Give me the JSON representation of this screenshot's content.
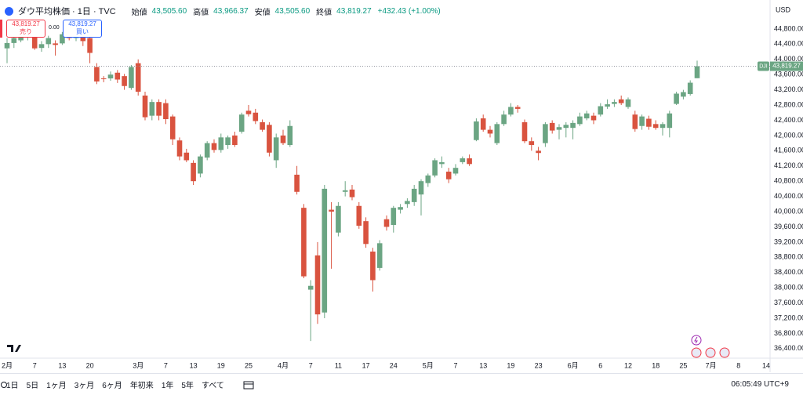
{
  "header": {
    "symbol": "ダウ平均株価 · 1日 · TVC",
    "ohlc": [
      {
        "label": "始値",
        "value": "43,505.60"
      },
      {
        "label": "高値",
        "value": "43,966.37"
      },
      {
        "label": "安値",
        "value": "43,505.60"
      },
      {
        "label": "終値",
        "value": "43,819.27"
      }
    ],
    "change": "+432.43 (+1.00%)"
  },
  "trade": {
    "sell_price": "43,819.27",
    "sell_label": "売り",
    "spread": "0.00",
    "buy_price": "43,819.27",
    "buy_label": "買い"
  },
  "price_axis": {
    "currency": "USD",
    "symbol_tag": "DJI",
    "last_price_label": "43,819.27"
  },
  "chart_data": {
    "type": "candlestick",
    "up_color": "#6ba583",
    "down_color": "#d9533f",
    "grid": false,
    "ylim": [
      36150,
      45560
    ],
    "yticks": [
      {
        "value": 44800,
        "label": "44,800.00"
      },
      {
        "value": 44400,
        "label": "44,400.00"
      },
      {
        "value": 44000,
        "label": "44,000.00"
      },
      {
        "value": 43600,
        "label": "43,600.00"
      },
      {
        "value": 43200,
        "label": "43,200.00"
      },
      {
        "value": 42800,
        "label": "42,800.00"
      },
      {
        "value": 42400,
        "label": "42,400.00"
      },
      {
        "value": 42000,
        "label": "42,000.00"
      },
      {
        "value": 41600,
        "label": "41,600.00"
      },
      {
        "value": 41200,
        "label": "41,200.00"
      },
      {
        "value": 40800,
        "label": "40,800.00"
      },
      {
        "value": 40400,
        "label": "40,400.00"
      },
      {
        "value": 40000,
        "label": "40,000.00"
      },
      {
        "value": 39600,
        "label": "39,600.00"
      },
      {
        "value": 39200,
        "label": "39,200.00"
      },
      {
        "value": 38800,
        "label": "38,800.00"
      },
      {
        "value": 38400,
        "label": "38,400.00"
      },
      {
        "value": 38000,
        "label": "38,000.00"
      },
      {
        "value": 37600,
        "label": "37,600.00"
      },
      {
        "value": 37200,
        "label": "37,200.00"
      },
      {
        "value": 36800,
        "label": "36,800.00"
      },
      {
        "value": 36400,
        "label": "36,400.00"
      }
    ],
    "categories": [
      "2月",
      null,
      null,
      null,
      "7",
      null,
      null,
      null,
      "13",
      null,
      null,
      null,
      "20",
      null,
      null,
      null,
      null,
      null,
      null,
      "3月",
      null,
      null,
      null,
      "7",
      null,
      null,
      null,
      "13",
      null,
      null,
      null,
      "19",
      null,
      null,
      null,
      "25",
      null,
      null,
      null,
      null,
      "4月",
      null,
      null,
      null,
      "7",
      null,
      null,
      null,
      "11",
      null,
      null,
      null,
      "17",
      null,
      null,
      null,
      "24",
      null,
      null,
      null,
      null,
      "5月",
      null,
      null,
      null,
      "7",
      null,
      null,
      null,
      "13",
      null,
      null,
      null,
      "19",
      null,
      null,
      null,
      "23",
      null,
      null,
      null,
      null,
      "6月",
      null,
      null,
      null,
      "6",
      null,
      null,
      null,
      "12",
      null,
      null,
      null,
      "18",
      null,
      null,
      null,
      "25",
      null,
      null,
      null,
      "7月",
      null,
      null,
      null,
      "8",
      null,
      null,
      null,
      "14"
    ],
    "open": [
      44290,
      44430,
      44500,
      44620,
      44640,
      44300,
      44400,
      44420,
      44420,
      44640,
      44560,
      44600,
      44560,
      43800,
      43500,
      43500,
      43650,
      43560,
      43250,
      43900,
      43050,
      42520,
      42880,
      42850,
      42500,
      41870,
      41550,
      41280,
      41000,
      41420,
      41800,
      41620,
      41750,
      42000,
      42100,
      42650,
      42600,
      42350,
      42280,
      41350,
      42000,
      41750,
      40970,
      40100,
      37950,
      38850,
      37350,
      40050,
      39450,
      40520,
      40580,
      40150,
      39750,
      38950,
      38520,
      39800,
      39650,
      40050,
      40200,
      40250,
      40450,
      40750,
      40950,
      41250,
      41050,
      41000,
      41300,
      41400,
      41880,
      42450,
      42150,
      41800,
      42300,
      42550,
      42750,
      42350,
      41850,
      41600,
      41800,
      42330,
      42150,
      42200,
      42200,
      42300,
      42450,
      42520,
      42550,
      42760,
      42830,
      42950,
      42750,
      42550,
      42250,
      42440,
      42300,
      42200,
      42200,
      42830,
      43020,
      43090,
      43505.6,
      null,
      null,
      null,
      null,
      null,
      null,
      null,
      null,
      null,
      null
    ],
    "high": [
      44560,
      44700,
      44760,
      44800,
      44700,
      44480,
      44620,
      44500,
      44720,
      44760,
      44700,
      44680,
      44600,
      43900,
      43560,
      43680,
      43720,
      43620,
      43850,
      44000,
      43150,
      42950,
      42950,
      42950,
      42550,
      41950,
      41650,
      41350,
      41500,
      41850,
      41900,
      42050,
      42000,
      42100,
      42600,
      42800,
      42700,
      42420,
      42350,
      42050,
      42150,
      42400,
      41200,
      40200,
      38200,
      39200,
      40700,
      40250,
      40250,
      40800,
      40700,
      40250,
      39850,
      39050,
      39250,
      39900,
      40150,
      40200,
      40350,
      40700,
      40850,
      41000,
      41400,
      41450,
      41150,
      41250,
      41450,
      41500,
      42450,
      42550,
      42250,
      42350,
      42650,
      42850,
      42800,
      42420,
      41950,
      41700,
      42350,
      42400,
      42300,
      42350,
      42400,
      42600,
      42650,
      42600,
      42850,
      42950,
      42950,
      43050,
      43000,
      42650,
      42550,
      42520,
      42400,
      42350,
      42650,
      43150,
      43200,
      43450,
      43966.37,
      null,
      null,
      null,
      null,
      null,
      null,
      null,
      null,
      null,
      null
    ],
    "low": [
      43900,
      44300,
      44450,
      44500,
      44250,
      44200,
      44300,
      44100,
      44380,
      44500,
      44480,
      44350,
      43900,
      43350,
      43400,
      43440,
      43380,
      43200,
      43200,
      43050,
      42400,
      42400,
      42400,
      42300,
      41750,
      41350,
      41300,
      40700,
      40900,
      41350,
      41550,
      41550,
      41650,
      41700,
      42050,
      42500,
      42300,
      42100,
      41450,
      41150,
      41750,
      41700,
      40450,
      38250,
      36600,
      37050,
      37200,
      38500,
      39350,
      40400,
      40300,
      39550,
      39050,
      37900,
      38450,
      39500,
      39450,
      39950,
      40100,
      40150,
      39900,
      40650,
      40900,
      41150,
      40750,
      40950,
      41250,
      41200,
      41850,
      42100,
      41950,
      41750,
      42250,
      42500,
      42600,
      41800,
      41600,
      41350,
      41700,
      42050,
      41900,
      41950,
      41900,
      42250,
      42400,
      42300,
      42500,
      42700,
      42750,
      42800,
      42700,
      42100,
      42150,
      42150,
      42150,
      42000,
      41950,
      42800,
      42950,
      43050,
      43505.6,
      null,
      null,
      null,
      null,
      null,
      null,
      null,
      null,
      null,
      null
    ],
    "close": [
      44430,
      44560,
      44620,
      44700,
      44290,
      44400,
      44560,
      44380,
      44660,
      44560,
      44600,
      44480,
      44170,
      43420,
      43480,
      43600,
      43470,
      43300,
      43800,
      43150,
      42480,
      42880,
      42520,
      42430,
      41900,
      41450,
      41350,
      40800,
      41450,
      41800,
      41620,
      41950,
      41950,
      41750,
      42550,
      42560,
      42380,
      42150,
      41550,
      41950,
      41800,
      42250,
      40520,
      38300,
      38050,
      37300,
      40600,
      40000,
      40150,
      40560,
      40380,
      39630,
      39150,
      38200,
      39170,
      39600,
      40100,
      40120,
      40280,
      40600,
      40800,
      40950,
      41350,
      41300,
      40850,
      41150,
      41400,
      41250,
      42370,
      42150,
      42050,
      42300,
      42550,
      42750,
      42700,
      41850,
      41750,
      41540,
      42300,
      42130,
      42220,
      42280,
      42330,
      42500,
      42580,
      42400,
      42770,
      42820,
      42880,
      42850,
      42950,
      42170,
      42500,
      42230,
      42200,
      42300,
      42580,
      43100,
      43140,
      43387,
      43819.27,
      null,
      null,
      null,
      null,
      null,
      null,
      null,
      null,
      null,
      null
    ]
  },
  "toolbar": {
    "ranges": [
      "1日",
      "5日",
      "1ヶ月",
      "3ヶ月",
      "6ヶ月",
      "年初来",
      "1年",
      "5年",
      "すべて"
    ],
    "clock": "06:05:49 UTC+9"
  }
}
